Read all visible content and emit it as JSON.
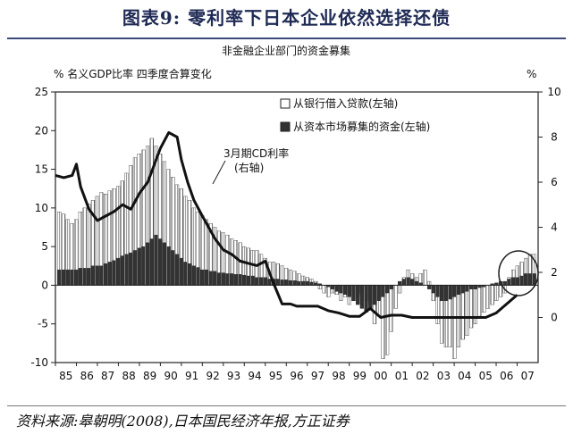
{
  "page": {
    "title": "图表9:   零利率下日本企业依然选择还债",
    "source": "资料来源:皋朝明(2008),日本国民经济年报,方正证券"
  },
  "chart_data": {
    "type": "bar",
    "title": "非金融企业部门的资金募集",
    "left_axis_label": "%  名义GDP比率  四季度合算变化",
    "right_axis_label": "%",
    "ylim_left": [
      -10,
      25
    ],
    "ylim_right": [
      -2,
      10
    ],
    "left_ticks": [
      "25",
      "20",
      "15",
      "10",
      "5",
      "0",
      "-5",
      "-10"
    ],
    "right_ticks": [
      "10",
      "8",
      "6",
      "4",
      "2",
      "0"
    ],
    "x_labels": [
      "85",
      "86",
      "87",
      "88",
      "89",
      "90",
      "91",
      "92",
      "93",
      "94",
      "95",
      "96",
      "97",
      "98",
      "99",
      "00",
      "01",
      "02",
      "03",
      "04",
      "05",
      "06",
      "07"
    ],
    "grid": false,
    "legend_position": "top-right",
    "legend": [
      {
        "name": "从银行借入贷款(左轴)",
        "style": "hatched"
      },
      {
        "name": "从资本市场募集的资金(左轴)",
        "style": "dark"
      }
    ],
    "annotation": {
      "line1": "3月期CD利率",
      "line2": "(右轴)"
    },
    "series": [
      {
        "name": "从银行借入贷款(左轴)",
        "axis": "left",
        "kind": "bar",
        "values": [
          9.5,
          9.2,
          8.5,
          8.0,
          8.5,
          9.5,
          10.0,
          10.5,
          11.0,
          11.5,
          12.0,
          11.8,
          12.2,
          12.5,
          12.8,
          13.5,
          14.5,
          15.5,
          16.5,
          17.0,
          17.5,
          18.0,
          19.0,
          18.0,
          17.0,
          16.0,
          15.0,
          14.0,
          13.0,
          12.5,
          11.5,
          11.0,
          10.0,
          9.5,
          9.0,
          8.5,
          8.0,
          7.5,
          7.0,
          6.8,
          6.5,
          6.0,
          5.8,
          5.5,
          5.0,
          4.8,
          4.5,
          4.5,
          4.0,
          3.5,
          3.0,
          3.0,
          2.8,
          2.5,
          2.2,
          2.0,
          1.8,
          1.5,
          1.2,
          1.0,
          0.8,
          0.5,
          -0.5,
          -1.0,
          -1.5,
          -1.0,
          -1.2,
          -2.0,
          -1.5,
          -2.5,
          -2.0,
          -1.5,
          -1.0,
          -2.0,
          -2.5,
          -5.0,
          -4.0,
          -9.5,
          -9.0,
          -6.0,
          -3.0,
          -1.0,
          1.0,
          2.0,
          1.5,
          1.0,
          1.5,
          2.0,
          0.5,
          -2.0,
          -5.0,
          -7.5,
          -8.0,
          -8.0,
          -9.5,
          -8.0,
          -7.0,
          -6.5,
          -5.5,
          -5.0,
          -4.0,
          -3.5,
          -3.0,
          -2.5,
          -2.0,
          -1.5,
          -1.0,
          1.0,
          2.0,
          2.5,
          3.0,
          3.5,
          4.0,
          4.0
        ]
      },
      {
        "name": "从资本市场募集的资金(左轴)",
        "axis": "left",
        "kind": "bar",
        "values": [
          2.0,
          2.0,
          2.0,
          2.0,
          2.0,
          2.2,
          2.2,
          2.2,
          2.5,
          2.5,
          2.5,
          2.8,
          3.0,
          3.2,
          3.5,
          3.8,
          4.0,
          4.2,
          4.5,
          4.8,
          5.0,
          5.5,
          6.0,
          6.5,
          6.0,
          5.5,
          5.0,
          4.5,
          4.0,
          3.5,
          3.0,
          2.8,
          2.5,
          2.3,
          2.0,
          2.0,
          1.8,
          1.8,
          1.6,
          1.6,
          1.5,
          1.5,
          1.4,
          1.4,
          1.3,
          1.2,
          1.2,
          1.0,
          1.0,
          1.0,
          0.8,
          0.8,
          0.8,
          0.7,
          0.7,
          0.6,
          0.6,
          0.5,
          0.5,
          0.5,
          0.4,
          0.3,
          0.2,
          0.0,
          -0.2,
          -0.5,
          -0.8,
          -1.0,
          -1.2,
          -1.5,
          -2.0,
          -2.5,
          -3.0,
          -3.5,
          -3.0,
          -2.5,
          -2.0,
          -1.5,
          -1.0,
          -0.5,
          0.0,
          0.5,
          0.8,
          1.0,
          0.8,
          0.5,
          0.3,
          0.0,
          -0.5,
          -1.0,
          -1.5,
          -2.0,
          -2.0,
          -1.8,
          -1.5,
          -1.2,
          -1.0,
          -0.8,
          -0.5,
          -0.5,
          -0.3,
          -0.2,
          0.0,
          0.2,
          0.3,
          0.5,
          0.5,
          0.8,
          1.0,
          1.0,
          1.2,
          1.5,
          1.5,
          1.5
        ]
      },
      {
        "name": "3月期CD利率",
        "axis": "right",
        "kind": "line",
        "x": [
          0,
          0.4,
          0.8,
          1.0,
          1.2,
          1.6,
          2.0,
          2.4,
          2.8,
          3.2,
          3.6,
          4.0,
          4.4,
          4.8,
          5.0,
          5.4,
          5.8,
          6.0,
          6.3,
          6.6,
          7.0,
          7.3,
          7.6,
          8.0,
          8.4,
          8.8,
          9.2,
          9.6,
          10.0,
          10.4,
          10.8,
          11.2,
          11.5,
          12.0,
          12.5,
          13.0,
          13.5,
          14.0,
          14.5,
          15.0,
          15.5,
          16.0,
          16.5,
          17.0,
          17.5,
          18.0,
          18.5,
          19.0,
          19.5,
          20.0,
          20.5,
          21.0,
          21.5,
          22.0
        ],
        "values": [
          6.3,
          6.2,
          6.3,
          6.8,
          5.8,
          4.8,
          4.3,
          4.5,
          4.7,
          5.0,
          4.8,
          5.5,
          6.0,
          7.0,
          7.5,
          8.2,
          8.0,
          7.0,
          6.0,
          5.2,
          4.5,
          4.0,
          3.5,
          3.0,
          2.8,
          2.5,
          2.4,
          2.3,
          2.5,
          1.5,
          0.6,
          0.6,
          0.5,
          0.5,
          0.5,
          0.3,
          0.2,
          0.05,
          0.05,
          0.4,
          0.0,
          0.1,
          0.1,
          0.0,
          0.0,
          0.0,
          0.0,
          0.0,
          0.0,
          0.0,
          0.0,
          0.2,
          0.6,
          1.0
        ]
      }
    ]
  }
}
